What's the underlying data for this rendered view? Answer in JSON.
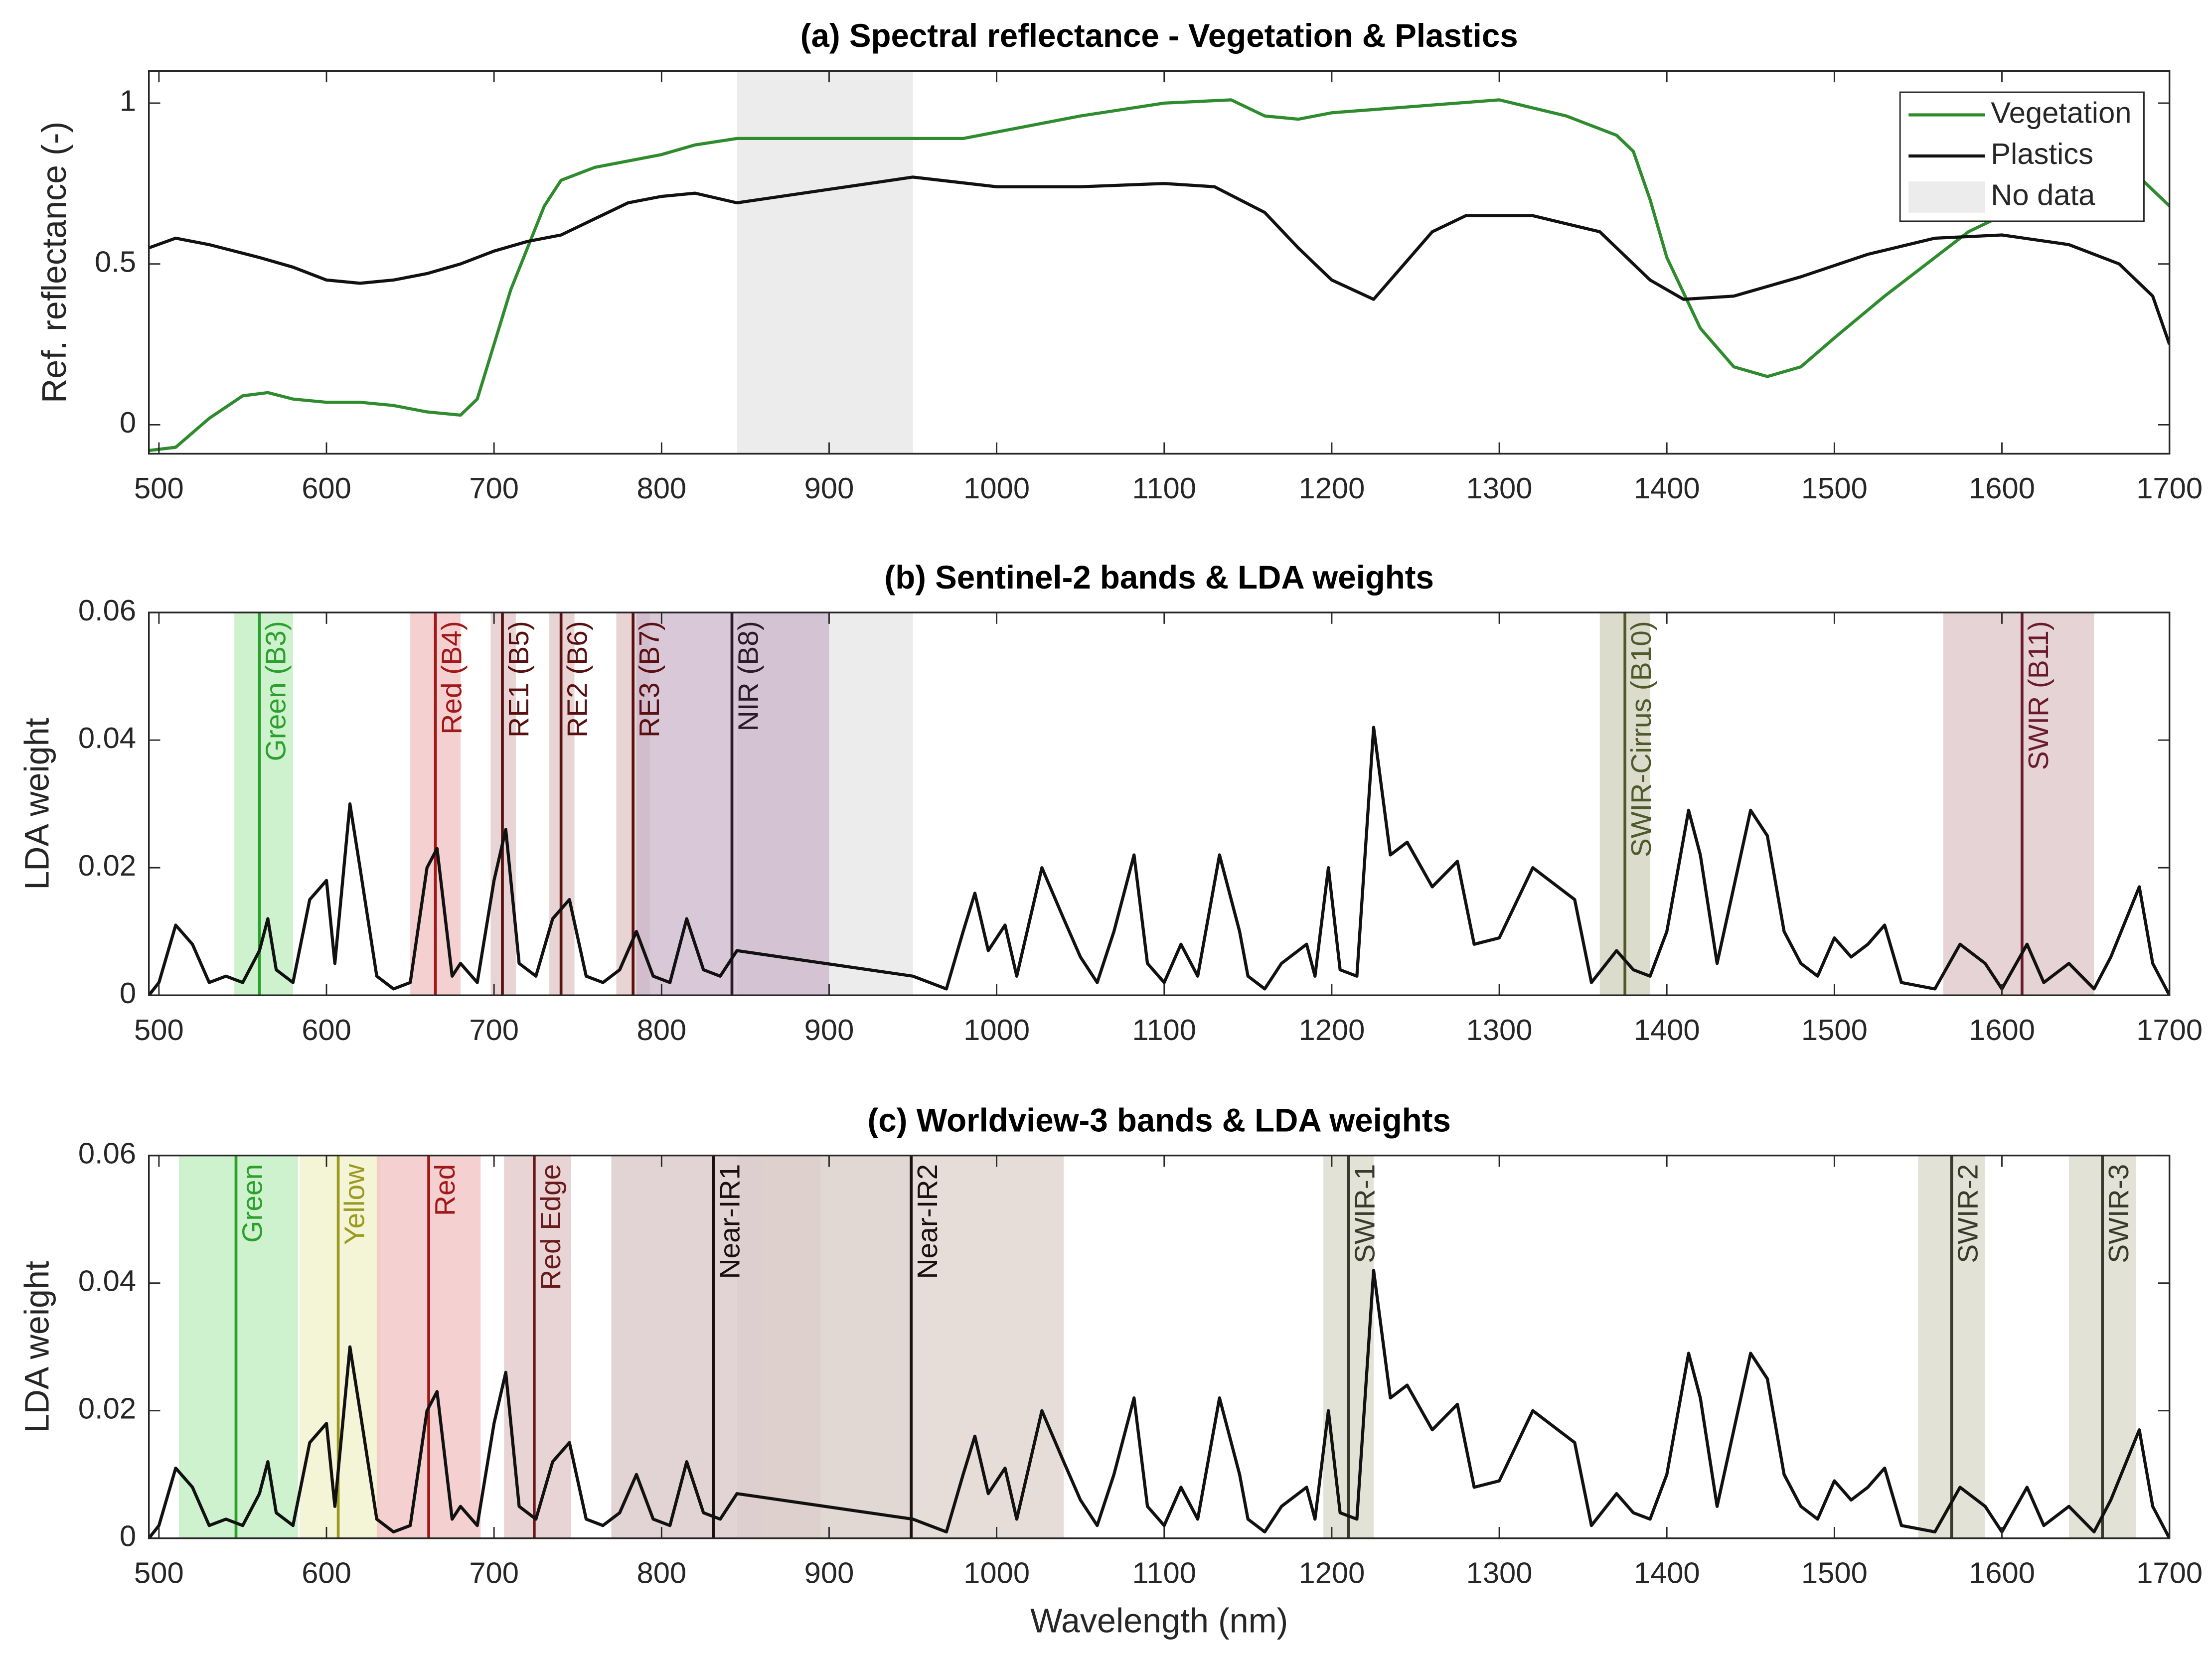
{
  "chart_data": [
    {
      "type": "line",
      "title": "(a) Spectral reflectance - Vegetation & Plastics",
      "ylabel": "Ref. reflectance (-)",
      "xlim": [
        494,
        1700
      ],
      "ylim": [
        -0.09,
        1.1
      ],
      "xticks": [
        500,
        600,
        700,
        800,
        900,
        1000,
        1100,
        1200,
        1300,
        1400,
        1500,
        1600,
        1700
      ],
      "yticks": [
        0,
        0.5,
        1
      ],
      "nodata": {
        "name": "No data",
        "range": [
          845,
          950
        ],
        "color": "#ececec"
      },
      "legend": "upper right",
      "series": [
        {
          "name": "Vegetation",
          "color": "#2e8b2e",
          "x": [
            494,
            510,
            530,
            550,
            565,
            580,
            600,
            620,
            640,
            660,
            680,
            690,
            700,
            710,
            720,
            730,
            740,
            760,
            780,
            800,
            820,
            845,
            950,
            980,
            1000,
            1050,
            1100,
            1140,
            1160,
            1180,
            1200,
            1250,
            1300,
            1340,
            1370,
            1380,
            1390,
            1400,
            1420,
            1440,
            1460,
            1480,
            1500,
            1530,
            1560,
            1580,
            1620,
            1660,
            1680,
            1700
          ],
          "values": [
            -0.08,
            -0.07,
            0.02,
            0.09,
            0.1,
            0.08,
            0.07,
            0.07,
            0.06,
            0.04,
            0.03,
            0.08,
            0.25,
            0.42,
            0.55,
            0.68,
            0.76,
            0.8,
            0.82,
            0.84,
            0.87,
            0.89,
            0.89,
            0.89,
            0.91,
            0.96,
            1.0,
            1.01,
            0.96,
            0.95,
            0.97,
            0.99,
            1.01,
            0.96,
            0.9,
            0.85,
            0.7,
            0.52,
            0.3,
            0.18,
            0.15,
            0.18,
            0.27,
            0.4,
            0.52,
            0.6,
            0.7,
            0.78,
            0.78,
            0.68
          ]
        },
        {
          "name": "Plastics",
          "color": "#111111",
          "x": [
            494,
            510,
            530,
            560,
            580,
            600,
            620,
            640,
            660,
            680,
            700,
            720,
            740,
            760,
            780,
            800,
            820,
            845,
            950,
            1000,
            1050,
            1100,
            1130,
            1160,
            1180,
            1200,
            1225,
            1240,
            1260,
            1280,
            1320,
            1360,
            1390,
            1410,
            1440,
            1480,
            1520,
            1560,
            1600,
            1640,
            1670,
            1690,
            1700
          ],
          "values": [
            0.55,
            0.58,
            0.56,
            0.52,
            0.49,
            0.45,
            0.44,
            0.45,
            0.47,
            0.5,
            0.54,
            0.57,
            0.59,
            0.64,
            0.69,
            0.71,
            0.72,
            0.69,
            0.77,
            0.74,
            0.74,
            0.75,
            0.74,
            0.66,
            0.55,
            0.45,
            0.39,
            0.48,
            0.6,
            0.65,
            0.65,
            0.6,
            0.45,
            0.39,
            0.4,
            0.46,
            0.53,
            0.58,
            0.59,
            0.56,
            0.5,
            0.4,
            0.25
          ]
        }
      ]
    },
    {
      "type": "bands",
      "title": "(b) Sentinel-2 bands & LDA weights",
      "ylabel": "LDA weight",
      "xlim": [
        494,
        1700
      ],
      "ylim": [
        0,
        0.06
      ],
      "xticks": [
        500,
        600,
        700,
        800,
        900,
        1000,
        1100,
        1200,
        1300,
        1400,
        1500,
        1600,
        1700
      ],
      "yticks": [
        0,
        0.02,
        0.04,
        0.06
      ],
      "nodata": {
        "range": [
          845,
          950
        ],
        "color": "#ececec"
      },
      "bands": [
        {
          "label": "Green (B3)",
          "range": [
            545,
            580
          ],
          "center": 560,
          "color": "#2ca02c",
          "fill": "#bdeebd"
        },
        {
          "label": "Red (B4)",
          "range": [
            650,
            680
          ],
          "center": 665,
          "color": "#a01818",
          "fill": "#f0c0c0"
        },
        {
          "label": "RE1 (B5)",
          "range": [
            698,
            713
          ],
          "center": 705,
          "color": "#5a1010",
          "fill": "#e0c6c6"
        },
        {
          "label": "RE2 (B6)",
          "range": [
            733,
            748
          ],
          "center": 740,
          "color": "#5a1010",
          "fill": "#e0c6c6"
        },
        {
          "label": "RE3 (B7)",
          "range": [
            773,
            793
          ],
          "center": 783,
          "color": "#5a1010",
          "fill": "#e0c6c6"
        },
        {
          "label": "NIR (B8)",
          "range": [
            785,
            900
          ],
          "center": 842,
          "color": "#2a1a2a",
          "fill": "#cbb6cb"
        },
        {
          "label": "SWIR-Cirrus (B10)",
          "range": [
            1360,
            1390
          ],
          "center": 1375,
          "color": "#4f5a2a",
          "fill": "#d0d0bc"
        },
        {
          "label": "SWIR (B11)",
          "range": [
            1565,
            1655
          ],
          "center": 1612,
          "color": "#6a1a2a",
          "fill": "#dcc4c8"
        }
      ],
      "series": [
        {
          "color": "#111111",
          "x": [
            494,
            500,
            510,
            520,
            530,
            540,
            550,
            560,
            565,
            570,
            580,
            590,
            600,
            605,
            614,
            620,
            630,
            640,
            650,
            660,
            666,
            675,
            680,
            690,
            700,
            707,
            715,
            725,
            735,
            745,
            755,
            765,
            775,
            785,
            795,
            805,
            815,
            825,
            835,
            845,
            950,
            960,
            970,
            980,
            987,
            995,
            1005,
            1012,
            1027,
            1040,
            1050,
            1060,
            1070,
            1082,
            1090,
            1100,
            1110,
            1120,
            1133,
            1145,
            1150,
            1160,
            1170,
            1185,
            1190,
            1198,
            1205,
            1215,
            1225,
            1235,
            1245,
            1260,
            1275,
            1285,
            1300,
            1320,
            1345,
            1355,
            1370,
            1380,
            1390,
            1400,
            1413,
            1420,
            1430,
            1450,
            1460,
            1470,
            1480,
            1490,
            1500,
            1510,
            1520,
            1530,
            1540,
            1560,
            1575,
            1590,
            1600,
            1615,
            1625,
            1640,
            1655,
            1665,
            1682,
            1690,
            1700
          ],
          "values": [
            0.0,
            0.002,
            0.011,
            0.008,
            0.002,
            0.003,
            0.002,
            0.007,
            0.012,
            0.004,
            0.002,
            0.015,
            0.018,
            0.005,
            0.03,
            0.02,
            0.003,
            0.001,
            0.002,
            0.02,
            0.023,
            0.003,
            0.005,
            0.002,
            0.018,
            0.026,
            0.005,
            0.003,
            0.012,
            0.015,
            0.003,
            0.002,
            0.004,
            0.01,
            0.003,
            0.002,
            0.012,
            0.004,
            0.003,
            0.007,
            0.003,
            0.002,
            0.001,
            0.01,
            0.016,
            0.007,
            0.011,
            0.003,
            0.02,
            0.012,
            0.006,
            0.002,
            0.01,
            0.022,
            0.005,
            0.002,
            0.008,
            0.003,
            0.022,
            0.01,
            0.003,
            0.001,
            0.005,
            0.008,
            0.003,
            0.02,
            0.004,
            0.003,
            0.042,
            0.022,
            0.024,
            0.017,
            0.021,
            0.008,
            0.009,
            0.02,
            0.015,
            0.002,
            0.007,
            0.004,
            0.003,
            0.01,
            0.029,
            0.022,
            0.005,
            0.029,
            0.025,
            0.01,
            0.005,
            0.003,
            0.009,
            0.006,
            0.008,
            0.011,
            0.002,
            0.001,
            0.008,
            0.005,
            0.001,
            0.008,
            0.002,
            0.005,
            0.001,
            0.006,
            0.017,
            0.005,
            0.0
          ]
        }
      ]
    },
    {
      "type": "bands",
      "title": "(c) Worldview-3 bands & LDA weights",
      "ylabel": "LDA weight",
      "xlabel": "Wavelength (nm)",
      "xlim": [
        494,
        1700
      ],
      "ylim": [
        0,
        0.06
      ],
      "xticks": [
        500,
        600,
        700,
        800,
        900,
        1000,
        1100,
        1200,
        1300,
        1400,
        1500,
        1600,
        1700
      ],
      "yticks": [
        0,
        0.02,
        0.04,
        0.06
      ],
      "nodata": {
        "range": [
          845,
          950
        ],
        "color": "#ececec"
      },
      "bands": [
        {
          "label": "Green",
          "range": [
            512,
            583
          ],
          "center": 546,
          "color": "#2ca02c",
          "fill": "#bdeebd"
        },
        {
          "label": "Yellow",
          "range": [
            584,
            632
          ],
          "center": 607,
          "color": "#9a9a20",
          "fill": "#f0f0c8"
        },
        {
          "label": "Red",
          "range": [
            630,
            692
          ],
          "center": 661,
          "color": "#a01818",
          "fill": "#f0c0c0"
        },
        {
          "label": "Red Edge",
          "range": [
            706,
            746
          ],
          "center": 724,
          "color": "#6a1a1a",
          "fill": "#e0c6c6"
        },
        {
          "label": "Near-IR1",
          "range": [
            770,
            895
          ],
          "center": 831,
          "color": "#1a1010",
          "fill": "#d8c6c6"
        },
        {
          "label": "Near-IR2",
          "range": [
            860,
            1040
          ],
          "center": 949,
          "color": "#1a1010",
          "fill": "#ddd2cc"
        },
        {
          "label": "SWIR-1",
          "range": [
            1195,
            1225
          ],
          "center": 1210,
          "color": "#3a3a2a",
          "fill": "#d8d8c8"
        },
        {
          "label": "SWIR-2",
          "range": [
            1550,
            1590
          ],
          "center": 1570,
          "color": "#3a3a2a",
          "fill": "#d8d8c8"
        },
        {
          "label": "SWIR-3",
          "range": [
            1640,
            1680
          ],
          "center": 1660,
          "color": "#3a3a2a",
          "fill": "#d8d8c8"
        }
      ],
      "series": [
        {
          "color": "#111111",
          "x": [
            494,
            500,
            510,
            520,
            530,
            540,
            550,
            560,
            565,
            570,
            580,
            590,
            600,
            605,
            614,
            620,
            630,
            640,
            650,
            660,
            666,
            675,
            680,
            690,
            700,
            707,
            715,
            725,
            735,
            745,
            755,
            765,
            775,
            785,
            795,
            805,
            815,
            825,
            835,
            845,
            950,
            960,
            970,
            980,
            987,
            995,
            1005,
            1012,
            1027,
            1040,
            1050,
            1060,
            1070,
            1082,
            1090,
            1100,
            1110,
            1120,
            1133,
            1145,
            1150,
            1160,
            1170,
            1185,
            1190,
            1198,
            1205,
            1215,
            1225,
            1235,
            1245,
            1260,
            1275,
            1285,
            1300,
            1320,
            1345,
            1355,
            1370,
            1380,
            1390,
            1400,
            1413,
            1420,
            1430,
            1450,
            1460,
            1470,
            1480,
            1490,
            1500,
            1510,
            1520,
            1530,
            1540,
            1560,
            1575,
            1590,
            1600,
            1615,
            1625,
            1640,
            1655,
            1665,
            1682,
            1690,
            1700
          ],
          "values": [
            0.0,
            0.002,
            0.011,
            0.008,
            0.002,
            0.003,
            0.002,
            0.007,
            0.012,
            0.004,
            0.002,
            0.015,
            0.018,
            0.005,
            0.03,
            0.02,
            0.003,
            0.001,
            0.002,
            0.02,
            0.023,
            0.003,
            0.005,
            0.002,
            0.018,
            0.026,
            0.005,
            0.003,
            0.012,
            0.015,
            0.003,
            0.002,
            0.004,
            0.01,
            0.003,
            0.002,
            0.012,
            0.004,
            0.003,
            0.007,
            0.003,
            0.002,
            0.001,
            0.01,
            0.016,
            0.007,
            0.011,
            0.003,
            0.02,
            0.012,
            0.006,
            0.002,
            0.01,
            0.022,
            0.005,
            0.002,
            0.008,
            0.003,
            0.022,
            0.01,
            0.003,
            0.001,
            0.005,
            0.008,
            0.003,
            0.02,
            0.004,
            0.003,
            0.042,
            0.022,
            0.024,
            0.017,
            0.021,
            0.008,
            0.009,
            0.02,
            0.015,
            0.002,
            0.007,
            0.004,
            0.003,
            0.01,
            0.029,
            0.022,
            0.005,
            0.029,
            0.025,
            0.01,
            0.005,
            0.003,
            0.009,
            0.006,
            0.008,
            0.011,
            0.002,
            0.001,
            0.008,
            0.005,
            0.001,
            0.008,
            0.002,
            0.005,
            0.001,
            0.006,
            0.017,
            0.005,
            0.0
          ]
        }
      ]
    }
  ]
}
